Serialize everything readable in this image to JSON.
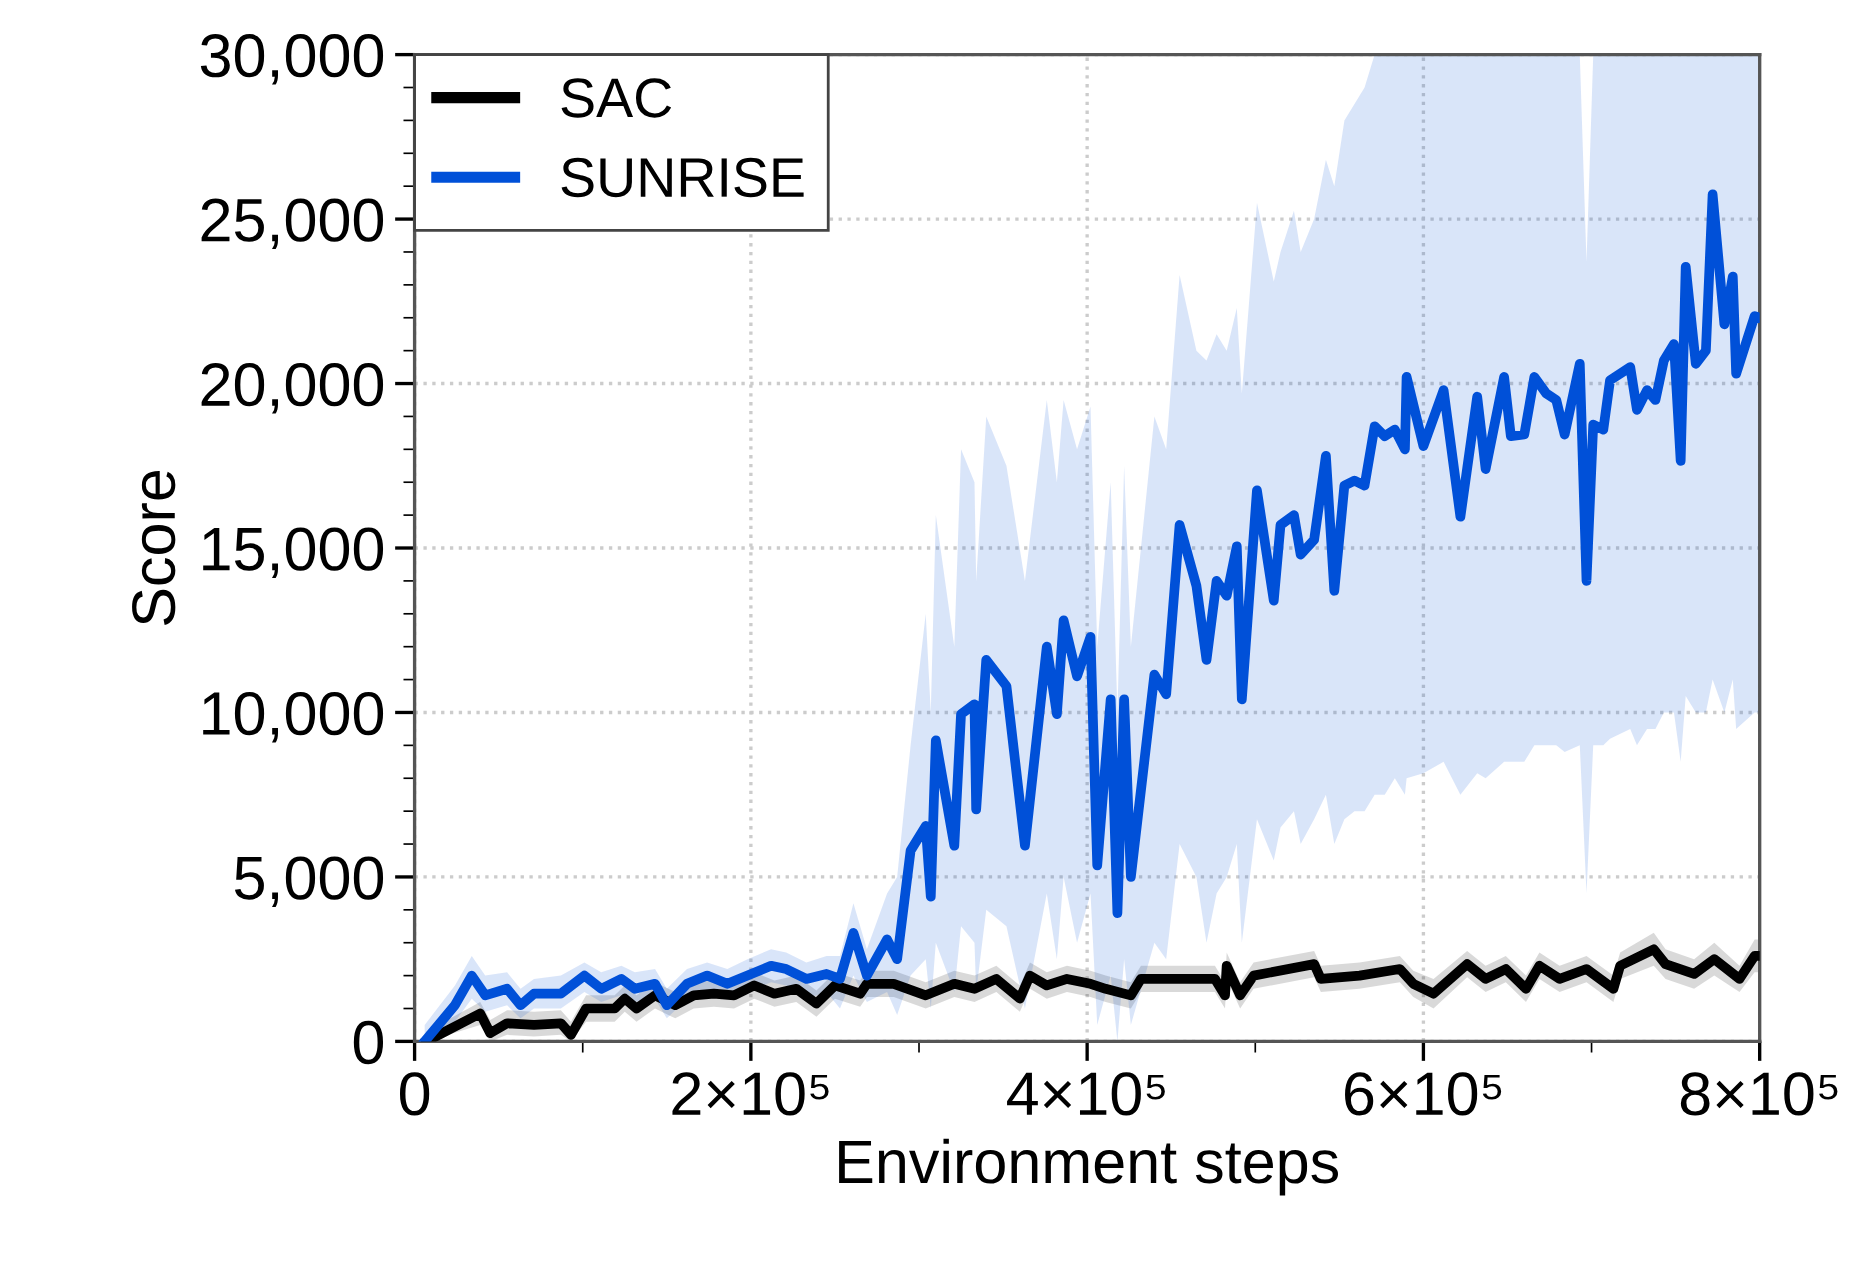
{
  "chart_data": {
    "type": "line",
    "xlabel": "Environment steps",
    "ylabel": "Score",
    "xlim": [
      0,
      800000
    ],
    "ylim": [
      0,
      30000
    ],
    "xticks": [
      0,
      {
        "value": 200000,
        "label": "2×10⁵"
      },
      {
        "value": 400000,
        "label": "4×10⁵"
      },
      {
        "value": 600000,
        "label": "6×10⁵"
      },
      {
        "value": 800000,
        "label": "8×10⁵"
      }
    ],
    "yticks": [
      0,
      {
        "value": 5000,
        "label": "5,000"
      },
      {
        "value": 10000,
        "label": "10,000"
      },
      {
        "value": 15000,
        "label": "15,000"
      },
      {
        "value": 20000,
        "label": "20,000"
      },
      {
        "value": 25000,
        "label": "25,000"
      },
      {
        "value": 30000,
        "label": "30,000"
      }
    ],
    "grid": true,
    "legend": "top left",
    "marker": "none",
    "line_style": "solid",
    "series": [
      {
        "name": "SAC",
        "color": "#000000",
        "x": [
          7000,
          39000,
          45000,
          55000,
          71000,
          87000,
          93000,
          102000,
          119000,
          125000,
          132000,
          143000,
          155000,
          166000,
          178000,
          190000,
          202000,
          214000,
          227000,
          239000,
          250000,
          265000,
          269000,
          285000,
          304000,
          321000,
          333000,
          346000,
          360000,
          366000,
          376000,
          388000,
          402000,
          411000,
          426000,
          432000,
          476000,
          482000,
          483000,
          491000,
          499000,
          535000,
          539000,
          562000,
          586000,
          594000,
          606000,
          626000,
          637000,
          649000,
          661000,
          669000,
          681000,
          697000,
          713000,
          717000,
          737000,
          744000,
          761000,
          773000,
          788000,
          797000,
          800000
        ],
        "values": [
          0,
          850,
          250,
          550,
          500,
          550,
          200,
          1000,
          1000,
          1300,
          1000,
          1400,
          1100,
          1400,
          1450,
          1400,
          1700,
          1450,
          1600,
          1150,
          1700,
          1450,
          1750,
          1750,
          1400,
          1750,
          1600,
          1900,
          1300,
          2000,
          1700,
          1900,
          1750,
          1600,
          1400,
          1900,
          1900,
          1400,
          2300,
          1400,
          2000,
          2350,
          1900,
          2000,
          2200,
          1750,
          1450,
          2350,
          1900,
          2200,
          1600,
          2300,
          1900,
          2200,
          1600,
          2300,
          2800,
          2350,
          2050,
          2500,
          1900,
          2600,
          2600
        ],
        "lower": [
          0,
          500,
          0,
          200,
          150,
          200,
          0,
          600,
          600,
          900,
          600,
          1000,
          700,
          1000,
          1050,
          1000,
          1300,
          1050,
          1200,
          750,
          1300,
          1050,
          1350,
          1350,
          1000,
          1350,
          1200,
          1500,
          900,
          1600,
          1300,
          1500,
          1350,
          1200,
          1000,
          1500,
          1500,
          1000,
          1900,
          1000,
          1600,
          1950,
          1500,
          1600,
          1800,
          1350,
          1000,
          1950,
          1500,
          1800,
          1200,
          1900,
          1500,
          1800,
          1200,
          1900,
          2300,
          1900,
          1600,
          2000,
          1500,
          2100,
          2100
        ],
        "upper": [
          300,
          1200,
          650,
          950,
          900,
          950,
          600,
          1400,
          1400,
          1700,
          1400,
          1800,
          1500,
          1800,
          1850,
          1800,
          2100,
          1850,
          2000,
          1550,
          2100,
          1850,
          2150,
          2150,
          1800,
          2150,
          2000,
          2300,
          1700,
          2400,
          2100,
          2300,
          2150,
          2000,
          1800,
          2300,
          2300,
          1800,
          2700,
          1800,
          2400,
          2750,
          2300,
          2400,
          2600,
          2150,
          1900,
          2750,
          2300,
          2600,
          2000,
          2700,
          2300,
          2600,
          2000,
          2700,
          3300,
          2800,
          2500,
          3000,
          2300,
          3100,
          3100
        ]
      },
      {
        "name": "SUNRISE",
        "color": "#0050d8",
        "x": [
          6000,
          24000,
          34000,
          42000,
          55000,
          63000,
          71000,
          87000,
          101000,
          111000,
          123000,
          131000,
          143000,
          150000,
          162000,
          174000,
          186000,
          198000,
          212000,
          221000,
          233000,
          245000,
          253000,
          261000,
          269000,
          281000,
          287000,
          295000,
          304000,
          307000,
          310000,
          321000,
          325000,
          333000,
          334000,
          340000,
          352000,
          363000,
          376000,
          382000,
          386000,
          394000,
          402000,
          406000,
          414000,
          418000,
          422000,
          426000,
          440000,
          447000,
          455000,
          465000,
          471000,
          477000,
          483000,
          489000,
          492000,
          501000,
          511000,
          515000,
          523000,
          527000,
          535000,
          542000,
          547000,
          553000,
          559000,
          565000,
          571000,
          577000,
          583000,
          589000,
          590000,
          600000,
          612000,
          622000,
          632000,
          637000,
          648000,
          652000,
          660000,
          666000,
          673000,
          679000,
          684000,
          693000,
          697000,
          701000,
          707000,
          711000,
          723000,
          727000,
          733000,
          738000,
          743000,
          749000,
          753000,
          756000,
          762000,
          768000,
          772000,
          779000,
          784000,
          786000,
          797000,
          800000
        ],
        "values": [
          0,
          1100,
          2000,
          1400,
          1600,
          1100,
          1450,
          1450,
          2000,
          1600,
          1900,
          1600,
          1750,
          1100,
          1750,
          2000,
          1750,
          2000,
          2300,
          2200,
          1900,
          2050,
          1900,
          3300,
          2000,
          3100,
          2500,
          5800,
          6550,
          4400,
          9150,
          5950,
          9950,
          10250,
          7050,
          11600,
          10800,
          5950,
          12000,
          9950,
          12800,
          11100,
          12300,
          5350,
          10400,
          3900,
          10400,
          5000,
          11150,
          10550,
          15700,
          13850,
          11600,
          14000,
          13550,
          15050,
          10400,
          16750,
          13400,
          15700,
          16000,
          14800,
          15250,
          17800,
          13700,
          16900,
          17050,
          16900,
          18700,
          18400,
          18600,
          18000,
          20200,
          18100,
          19800,
          15950,
          19600,
          17400,
          20200,
          18400,
          18450,
          20200,
          19700,
          19500,
          18450,
          20600,
          14000,
          18750,
          18600,
          20100,
          20500,
          19200,
          19800,
          19500,
          20700,
          21200,
          17650,
          23550,
          20600,
          21000,
          25750,
          21800,
          23250,
          20300,
          22050,
          22000
        ],
        "lower": [
          0,
          600,
          1300,
          900,
          1100,
          700,
          1000,
          1000,
          1500,
          1200,
          1400,
          1200,
          1300,
          700,
          1300,
          1500,
          1300,
          1500,
          1800,
          1700,
          1300,
          1500,
          1000,
          2000,
          1200,
          1500,
          800,
          2000,
          2500,
          1000,
          3000,
          1500,
          3500,
          3000,
          1500,
          4000,
          3500,
          1000,
          4500,
          2500,
          5000,
          3000,
          4500,
          500,
          2000,
          0,
          2500,
          500,
          3000,
          2500,
          6000,
          5000,
          3000,
          4500,
          5000,
          6000,
          3000,
          6750,
          5500,
          6500,
          7000,
          6000,
          6750,
          7500,
          6000,
          6750,
          7000,
          7000,
          7500,
          7500,
          8000,
          7500,
          8000,
          8150,
          8500,
          7500,
          8150,
          8000,
          8500,
          8500,
          8500,
          9000,
          9000,
          9000,
          8800,
          9000,
          4500,
          9000,
          9000,
          9200,
          9500,
          9000,
          9500,
          9500,
          10000,
          10000,
          8500,
          10500,
          10000,
          10000,
          11000,
          10000,
          11000,
          9500,
          10000,
          10000
        ],
        "upper": [
          500,
          1700,
          2600,
          2000,
          2100,
          1600,
          1900,
          2000,
          2400,
          2100,
          2300,
          2100,
          2200,
          1600,
          2200,
          2400,
          2200,
          2500,
          2800,
          2700,
          2400,
          2600,
          2600,
          4200,
          2800,
          4500,
          5000,
          9000,
          13000,
          10000,
          16000,
          12000,
          18000,
          17000,
          14000,
          19000,
          17500,
          14000,
          19500,
          17000,
          19500,
          18000,
          19300,
          12000,
          17000,
          10000,
          17500,
          12000,
          19000,
          18000,
          23300,
          21000,
          20700,
          21500,
          21000,
          22300,
          19700,
          25500,
          23100,
          24000,
          25250,
          24000,
          25000,
          26800,
          26000,
          28000,
          28500,
          29000,
          30000,
          30000,
          30000,
          30000,
          30000,
          30000,
          30000,
          30000,
          30000,
          30000,
          30000,
          30000,
          30000,
          30000,
          30000,
          30000,
          30000,
          30000,
          23700,
          30000,
          30000,
          30000,
          30000,
          30000,
          30000,
          30000,
          30000,
          30000,
          30000,
          30000,
          30000,
          30000,
          30000,
          30000,
          30000,
          30000,
          30000,
          30000
        ]
      }
    ]
  }
}
